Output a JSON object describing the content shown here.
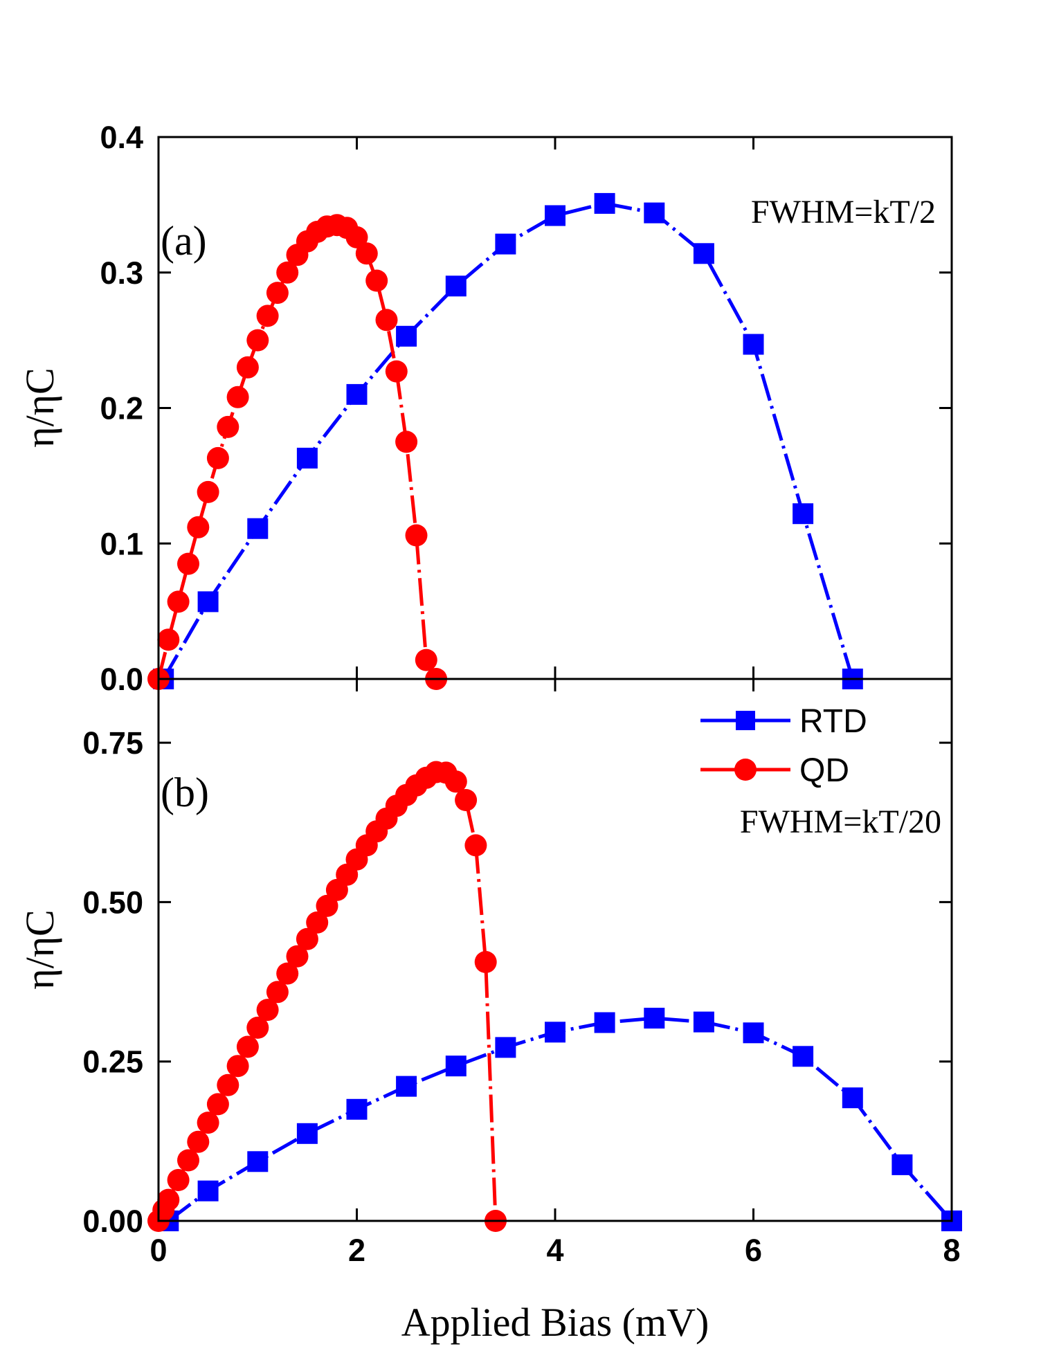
{
  "chart_data": [
    {
      "type": "line",
      "panel_label": "(a)",
      "annotation": "FWHM=kT/2",
      "ylabel": "η/ηC",
      "xlabel": "",
      "xlim": [
        0,
        8
      ],
      "ylim": [
        0,
        0.4
      ],
      "xticks": [
        0,
        2,
        4,
        6,
        8
      ],
      "yticks": [
        0.0,
        0.1,
        0.2,
        0.3,
        0.4
      ],
      "ytick_labels": [
        "0.0",
        "0.1",
        "0.2",
        "0.3",
        "0.4"
      ],
      "series": [
        {
          "name": "RTD",
          "color": "#0000ff",
          "marker": "square",
          "line": "dash-dot",
          "x": [
            0.05,
            0.5,
            1.0,
            1.5,
            2.0,
            2.5,
            3.0,
            3.5,
            4.0,
            4.5,
            5.0,
            5.5,
            6.0,
            6.5,
            7.0
          ],
          "y": [
            0.0,
            0.057,
            0.111,
            0.163,
            0.21,
            0.253,
            0.29,
            0.321,
            0.342,
            0.351,
            0.344,
            0.314,
            0.247,
            0.122,
            0.0
          ]
        },
        {
          "name": "QD",
          "color": "#ff0000",
          "marker": "circle",
          "line": "dash-dot",
          "x": [
            0.0,
            0.1,
            0.2,
            0.3,
            0.4,
            0.5,
            0.6,
            0.7,
            0.8,
            0.9,
            1.0,
            1.1,
            1.2,
            1.3,
            1.4,
            1.5,
            1.6,
            1.7,
            1.8,
            1.9,
            2.0,
            2.1,
            2.2,
            2.3,
            2.4,
            2.5,
            2.6,
            2.7,
            2.8
          ],
          "y": [
            0.0,
            0.029,
            0.057,
            0.085,
            0.112,
            0.138,
            0.163,
            0.186,
            0.208,
            0.23,
            0.25,
            0.268,
            0.285,
            0.3,
            0.313,
            0.323,
            0.33,
            0.334,
            0.335,
            0.333,
            0.326,
            0.314,
            0.294,
            0.265,
            0.227,
            0.175,
            0.106,
            0.014,
            0.0
          ]
        }
      ]
    },
    {
      "type": "line",
      "panel_label": "(b)",
      "annotation": "FWHM=kT/20",
      "ylabel": "η/ηC",
      "xlabel": "Applied Bias (mV)",
      "xlim": [
        0,
        8
      ],
      "ylim": [
        0,
        0.85
      ],
      "xticks": [
        0,
        2,
        4,
        6,
        8
      ],
      "xtick_labels": [
        "0",
        "2",
        "4",
        "6",
        "8"
      ],
      "yticks": [
        0.0,
        0.25,
        0.5,
        0.75
      ],
      "ytick_labels": [
        "0.00",
        "0.25",
        "0.50",
        "0.75"
      ],
      "legend": {
        "position": "top-right",
        "entries": [
          "RTD",
          "QD"
        ]
      },
      "series": [
        {
          "name": "RTD",
          "color": "#0000ff",
          "marker": "square",
          "line": "dash-dot",
          "x": [
            0.1,
            0.5,
            1.0,
            1.5,
            2.0,
            2.5,
            3.0,
            3.5,
            4.0,
            4.5,
            5.0,
            5.5,
            6.0,
            6.5,
            7.0,
            7.5,
            8.0
          ],
          "y": [
            0.0,
            0.047,
            0.093,
            0.137,
            0.175,
            0.211,
            0.243,
            0.272,
            0.296,
            0.311,
            0.318,
            0.312,
            0.295,
            0.258,
            0.193,
            0.088,
            0.0
          ]
        },
        {
          "name": "QD",
          "color": "#ff0000",
          "marker": "circle",
          "line": "dash-dot",
          "x": [
            0.0,
            0.05,
            0.1,
            0.2,
            0.3,
            0.4,
            0.5,
            0.6,
            0.7,
            0.8,
            0.9,
            1.0,
            1.1,
            1.2,
            1.3,
            1.4,
            1.5,
            1.6,
            1.7,
            1.8,
            1.9,
            2.0,
            2.1,
            2.2,
            2.3,
            2.4,
            2.5,
            2.6,
            2.7,
            2.8,
            2.9,
            3.0,
            3.1,
            3.2,
            3.3,
            3.4
          ],
          "y": [
            0.0,
            0.017,
            0.033,
            0.064,
            0.095,
            0.124,
            0.154,
            0.183,
            0.213,
            0.243,
            0.273,
            0.303,
            0.331,
            0.359,
            0.388,
            0.415,
            0.442,
            0.468,
            0.494,
            0.519,
            0.543,
            0.567,
            0.589,
            0.611,
            0.631,
            0.651,
            0.668,
            0.683,
            0.695,
            0.704,
            0.703,
            0.689,
            0.66,
            0.589,
            0.406,
            0.0
          ]
        }
      ]
    }
  ]
}
